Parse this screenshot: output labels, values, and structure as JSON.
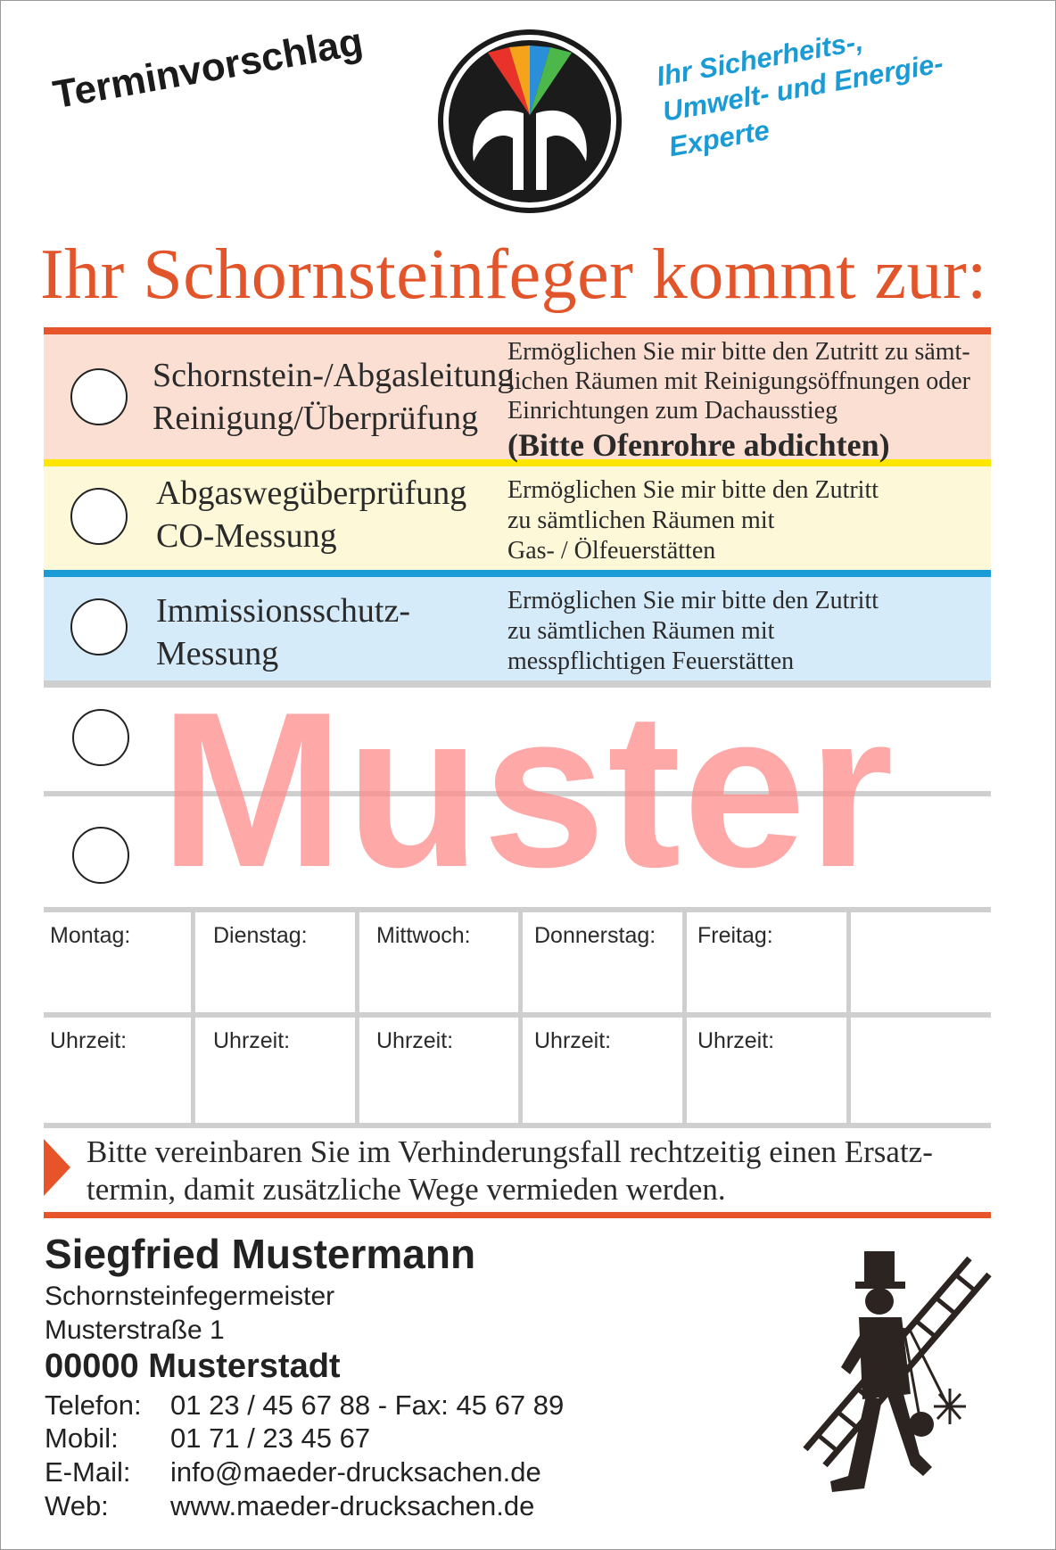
{
  "header": {
    "label": "Terminvorschlag",
    "tagline": [
      "Ihr Sicherheits-,",
      "Umwelt- und Energie-",
      "Experte"
    ],
    "headline": "Ihr Schornsteinfeger kommt zur:",
    "logo_icon": "chimney-sweep-guild-logo-icon",
    "logo_colors": [
      "#e8322a",
      "#f4a31a",
      "#2a8fd8",
      "#4cb84a"
    ]
  },
  "services": [
    {
      "title_lines": [
        "Schornstein-/Abgasleitung",
        "Reinigung/Überprüfung"
      ],
      "desc_lines": [
        "Ermöglichen Sie mir bitte den Zutritt zu sämt-",
        "lichen Räumen mit Reinigungsöffnungen oder",
        "Einrichtungen zum Dachausstieg"
      ],
      "note": "(Bitte Ofenrohre abdichten)",
      "band_color": "#fbdfd2",
      "bar_color": "#e8542a"
    },
    {
      "title_lines": [
        "Abgaswegüberprüfung",
        "CO-Messung"
      ],
      "desc_lines": [
        "Ermöglichen Sie mir bitte den Zutritt",
        "zu sämtlichen Räumen mit",
        "Gas- / Ölfeuerstätten"
      ],
      "band_color": "#fdf8d8",
      "bar_color": "#ffe600"
    },
    {
      "title_lines": [
        "Immissionsschutz-",
        "Messung"
      ],
      "desc_lines": [
        "Ermöglichen Sie mir bitte den Zutritt",
        "zu sämtlichen Räumen mit",
        "messpflichtigen Feuerstätten"
      ],
      "band_color": "#d5ebfa",
      "bar_color": "#1a9bd6"
    }
  ],
  "watermark": "Muster",
  "schedule": {
    "days": [
      "Montag:",
      "Dienstag:",
      "Mittwoch:",
      "Donnerstag:",
      "Freitag:"
    ],
    "time_label": "Uhrzeit:"
  },
  "notice_lines": [
    "Bitte vereinbaren Sie im Verhinderungsfall rechtzeitig einen Ersatz-",
    "termin, damit zusätzliche Wege vermieden werden."
  ],
  "contact": {
    "name": "Siegfried Mustermann",
    "title": "Schornsteinfegermeister",
    "street": "Musterstraße 1",
    "city": "00000 Musterstadt",
    "phone_label": "Telefon:",
    "phone": "01 23 / 45 67 88 - Fax:  45 67 89",
    "mobile_label": "Mobil:",
    "mobile": "01 71 / 23 45 67",
    "email_label": "E-Mail:",
    "email": "info@maeder-drucksachen.de",
    "web_label": "Web:",
    "web": "www.maeder-drucksachen.de",
    "figure_icon": "chimney-sweep-figure-icon"
  }
}
